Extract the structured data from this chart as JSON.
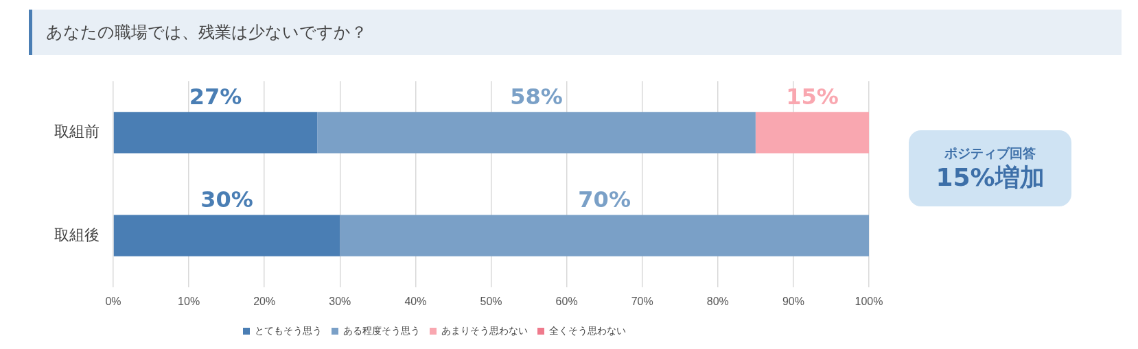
{
  "chart_data": {
    "type": "bar",
    "orientation": "horizontal",
    "stacked": true,
    "title": "あなたの職場では、残業は少ないですか？",
    "categories": [
      "取組前",
      "取組後"
    ],
    "series": [
      {
        "name": "とてもそう思う",
        "color": "#4a7eb4",
        "values": [
          27,
          30
        ],
        "value_labels": [
          "27%",
          "30%"
        ]
      },
      {
        "name": "ある程度そう思う",
        "color": "#7aa0c7",
        "values": [
          58,
          70
        ],
        "value_labels": [
          "58%",
          "70%"
        ]
      },
      {
        "name": "あまりそう思わない",
        "color": "#f9a7b0",
        "values": [
          15,
          0
        ],
        "value_labels": [
          "15%",
          null
        ]
      },
      {
        "name": "全くそう思わない",
        "color": "#ef7a8c",
        "values": [
          0,
          0
        ],
        "value_labels": [
          null,
          null
        ]
      }
    ],
    "xlim": [
      0,
      100
    ],
    "xticks": [
      {
        "value": 0,
        "label": "0%"
      },
      {
        "value": 10,
        "label": "10%"
      },
      {
        "value": 20,
        "label": "20%"
      },
      {
        "value": 30,
        "label": "30%"
      },
      {
        "value": 40,
        "label": "40%"
      },
      {
        "value": 50,
        "label": "50%"
      },
      {
        "value": 60,
        "label": "60%"
      },
      {
        "value": 70,
        "label": "70%"
      },
      {
        "value": 80,
        "label": "80%"
      },
      {
        "value": 90,
        "label": "90%"
      },
      {
        "value": 100,
        "label": "100%"
      }
    ],
    "grid": "x",
    "legend": "bottom",
    "annotations": [
      "ポジティブ回答",
      "15%増加"
    ]
  }
}
